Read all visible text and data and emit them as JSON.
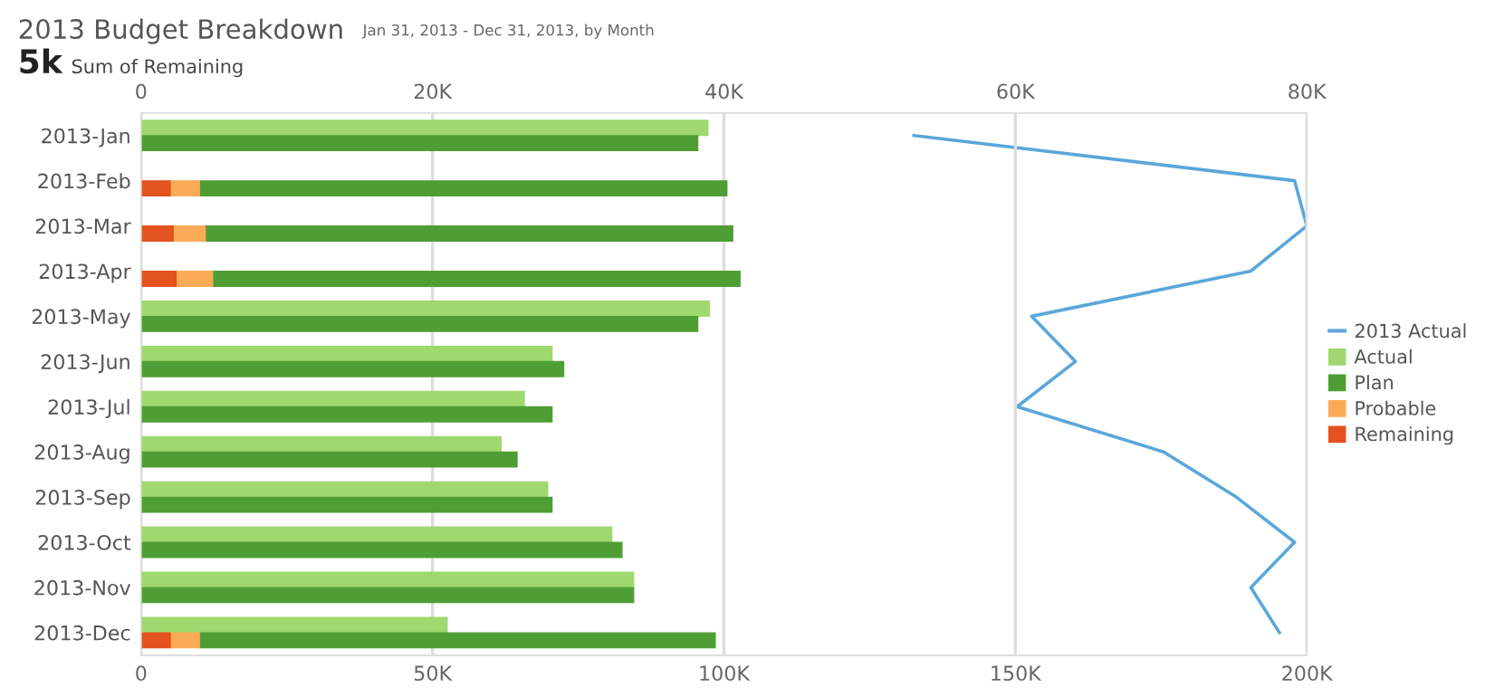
{
  "chart_data": {
    "type": "bar",
    "orientation": "horizontal",
    "title": "2013 Budget Breakdown",
    "subtitle": "Jan 31, 2013 - Dec 31, 2013, by Month",
    "annotations": [
      "5k",
      "Sum of Remaining"
    ],
    "categories": [
      "2013-Jan",
      "2013-Feb",
      "2013-Mar",
      "2013-Apr",
      "2013-May",
      "2013-Jun",
      "2013-Jul",
      "2013-Aug",
      "2013-Sep",
      "2013-Oct",
      "2013-Nov",
      "2013-Dec"
    ],
    "series": [
      {
        "name": "2013 Actual",
        "type": "line",
        "color": "#5ba7d9",
        "values": [
          132600,
          197900,
          200000,
          190400,
          152800,
          160300,
          150300,
          175400,
          187900,
          197900,
          190400,
          195300
        ]
      },
      {
        "name": "Actual",
        "axis": "x2",
        "color": "#9fd86f",
        "values": [
          38900,
          null,
          null,
          null,
          39000,
          28200,
          26300,
          24700,
          27900,
          32300,
          33800,
          21000
        ]
      },
      {
        "name": "Plan",
        "axis": "x2",
        "color": "#4f9e35",
        "values": [
          38200,
          36200,
          36200,
          36200,
          38200,
          29000,
          28200,
          25800,
          28200,
          33000,
          33800,
          35400
        ],
        "base": [
          0,
          4000,
          4400,
          4900,
          0,
          0,
          0,
          0,
          0,
          0,
          0,
          4000
        ]
      },
      {
        "name": "Probable",
        "axis": "x2",
        "color": "#fbab57",
        "values": [
          null,
          2000,
          2200,
          2500,
          null,
          null,
          null,
          null,
          null,
          null,
          null,
          2000
        ],
        "base": [
          null,
          2000,
          2200,
          2400,
          null,
          null,
          null,
          null,
          null,
          null,
          null,
          2000
        ]
      },
      {
        "name": "Remaining",
        "axis": "x2",
        "color": "#e4521f",
        "values": [
          null,
          2000,
          2200,
          2400,
          null,
          null,
          null,
          null,
          null,
          null,
          null,
          2000
        ]
      }
    ],
    "xlim": [
      0,
      200000
    ],
    "xticks": [
      0,
      {
        "value": 50000,
        "label": "50K"
      },
      {
        "value": 100000,
        "label": "100K"
      },
      {
        "value": 150000,
        "label": "150K"
      },
      {
        "value": 200000,
        "label": "200K"
      }
    ],
    "x2lim": [
      0,
      80000
    ],
    "x2ticks": [
      0,
      {
        "value": 20000,
        "label": "20K"
      },
      {
        "value": 40000,
        "label": "40K"
      },
      {
        "value": 60000,
        "label": "60K"
      },
      {
        "value": 80000,
        "label": "80K"
      }
    ],
    "grid": "x",
    "legend": "right"
  }
}
